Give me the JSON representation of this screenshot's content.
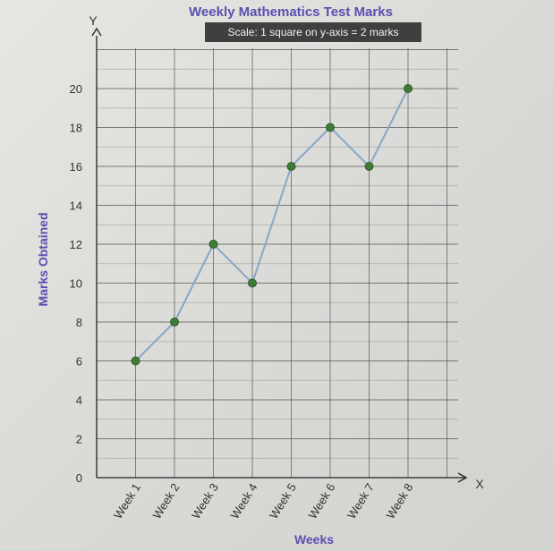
{
  "chart_data": {
    "type": "line",
    "title": "Weekly Mathematics Test Marks",
    "subtitle": "Scale: 1 square on y-axis = 2 marks",
    "xlabel": "Weeks",
    "ylabel": "Marks Obtained",
    "x_axis_letter": "X",
    "y_axis_letter": "Y",
    "categories": [
      "Week 1",
      "Week 2",
      "Week 3",
      "Week 4",
      "Week 5",
      "Week 6",
      "Week 7",
      "Week 8"
    ],
    "values": [
      6,
      8,
      12,
      10,
      16,
      18,
      16,
      20
    ],
    "yticks": [
      "0",
      "2",
      "4",
      "6",
      "8",
      "10",
      "12",
      "14",
      "16",
      "18",
      "20"
    ],
    "ylim": [
      0,
      22
    ],
    "grid": true,
    "line_color": "#86a8c8",
    "point_color": "#3f7a36",
    "title_color": "#5a4fb0"
  }
}
